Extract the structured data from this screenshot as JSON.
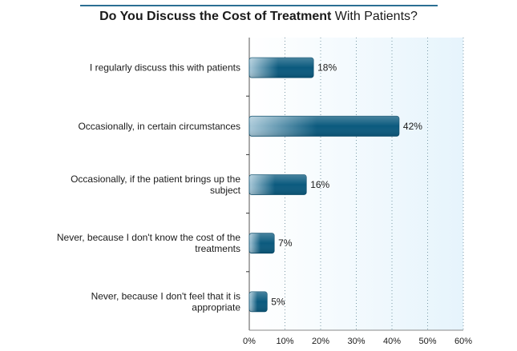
{
  "chart_data": {
    "type": "bar",
    "orientation": "horizontal",
    "title_bold": "Do You Discuss the Cost of Treatment",
    "title_rest": "With Patients?",
    "categories": [
      [
        "I regularly discuss this with patients"
      ],
      [
        "Occasionally, in certain circumstances"
      ],
      [
        "Occasionally, if the patient brings up the",
        "subject"
      ],
      [
        "Never, because I don't know the cost of the",
        "treatments"
      ],
      [
        "Never, because I don't feel that it is",
        "appropriate"
      ]
    ],
    "values": [
      18,
      42,
      16,
      7,
      5
    ],
    "value_labels": [
      "18%",
      "42%",
      "16%",
      "7%",
      "5%"
    ],
    "xlim": [
      0,
      60
    ],
    "xticks": [
      0,
      10,
      20,
      30,
      40,
      50,
      60
    ],
    "xtick_labels": [
      "0%",
      "10%",
      "20%",
      "30%",
      "40%",
      "50%",
      "60%"
    ],
    "grid": "vertical dotted",
    "colors": {
      "bar_dark": "#0b5a7e",
      "bar_light": "#a9c9d9",
      "plot_bg": "#eef7fd",
      "title_rule": "#2b6f93"
    }
  }
}
